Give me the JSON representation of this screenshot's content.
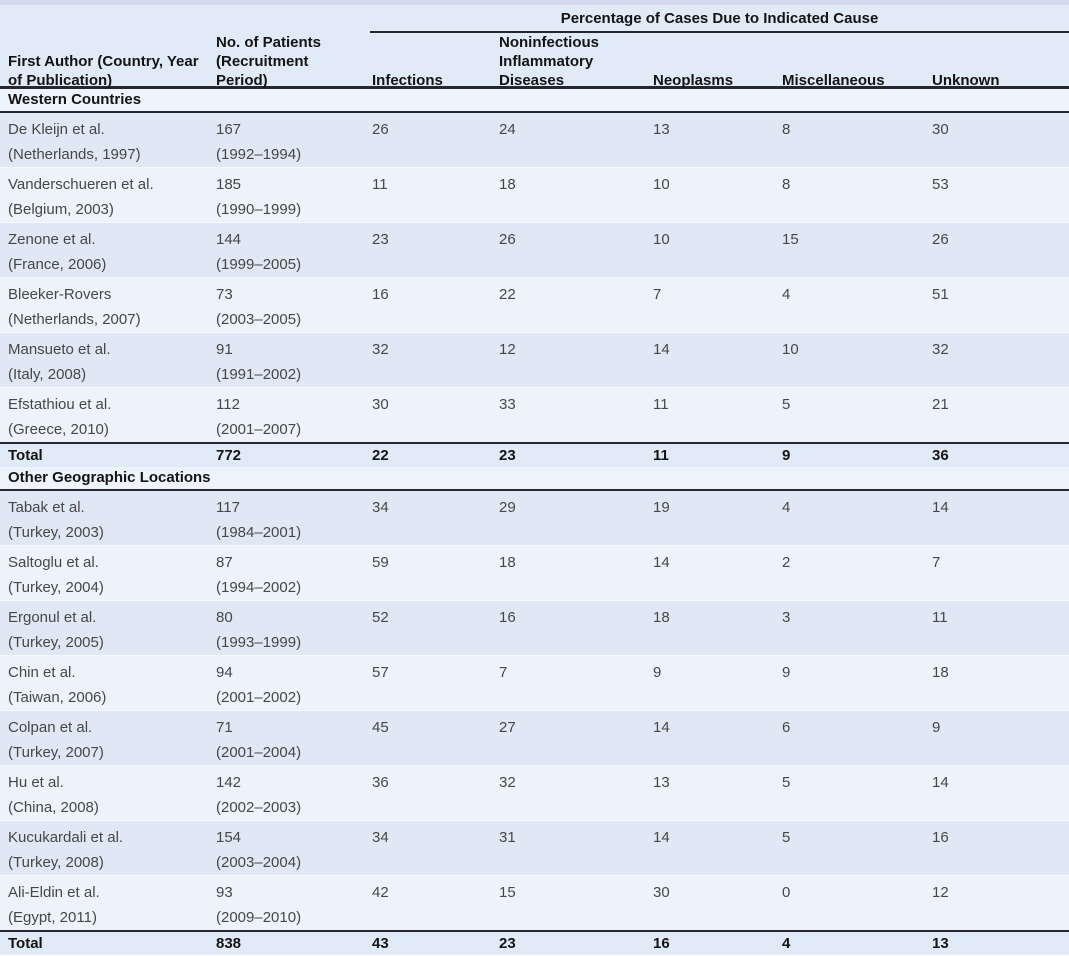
{
  "table": {
    "span_header": "Percentage of Cases Due to Indicated Cause",
    "header": {
      "col_author": "First Author (Country, Year of Publication)",
      "col_patients": "No. of Patients (Recruitment Period)",
      "col_infections": "Infections",
      "col_niid": "Noninfectious Inflammatory Diseases",
      "col_neoplasms": "Neoplasms",
      "col_misc": "Miscellaneous",
      "col_unknown": "Unknown"
    },
    "sections": [
      {
        "title": "Western Countries",
        "rows": [
          {
            "name": "De Kleijn et al.",
            "place": "(Netherlands, 1997)",
            "n": "167",
            "period": "(1992–1994)",
            "inf": "26",
            "niid": "24",
            "neo": "13",
            "misc": "8",
            "unk": "30"
          },
          {
            "name": "Vanderschueren et al.",
            "place": "(Belgium, 2003)",
            "n": "185",
            "period": "(1990–1999)",
            "inf": "11",
            "niid": "18",
            "neo": "10",
            "misc": "8",
            "unk": "53"
          },
          {
            "name": "Zenone et al.",
            "place": "(France, 2006)",
            "n": "144",
            "period": "(1999–2005)",
            "inf": "23",
            "niid": "26",
            "neo": "10",
            "misc": "15",
            "unk": "26"
          },
          {
            "name": "Bleeker-Rovers",
            "place": "(Netherlands, 2007)",
            "n": "73",
            "period": "(2003–2005)",
            "inf": "16",
            "niid": "22",
            "neo": "7",
            "misc": "4",
            "unk": "51"
          },
          {
            "name": "Mansueto et al.",
            "place": "(Italy, 2008)",
            "n": "91",
            "period": "(1991–2002)",
            "inf": "32",
            "niid": "12",
            "neo": "14",
            "misc": "10",
            "unk": "32"
          },
          {
            "name": "Efstathiou et al.",
            "place": "(Greece, 2010)",
            "n": "112",
            "period": "(2001–2007)",
            "inf": "30",
            "niid": "33",
            "neo": "11",
            "misc": "5",
            "unk": "21"
          }
        ],
        "total": {
          "label": "Total",
          "n": "772",
          "inf": "22",
          "niid": "23",
          "neo": "11",
          "misc": "9",
          "unk": "36"
        }
      },
      {
        "title": "Other Geographic Locations",
        "rows": [
          {
            "name": "Tabak et al.",
            "place": "(Turkey, 2003)",
            "n": "117",
            "period": "(1984–2001)",
            "inf": "34",
            "niid": "29",
            "neo": "19",
            "misc": "4",
            "unk": "14"
          },
          {
            "name": "Saltoglu et al.",
            "place": "(Turkey, 2004)",
            "n": "87",
            "period": "(1994–2002)",
            "inf": "59",
            "niid": "18",
            "neo": "14",
            "misc": "2",
            "unk": "7"
          },
          {
            "name": "Ergonul et al.",
            "place": "(Turkey, 2005)",
            "n": "80",
            "period": "(1993–1999)",
            "inf": "52",
            "niid": "16",
            "neo": "18",
            "misc": "3",
            "unk": "11"
          },
          {
            "name": "Chin et al.",
            "place": "(Taiwan, 2006)",
            "n": "94",
            "period": "(2001–2002)",
            "inf": "57",
            "niid": "7",
            "neo": "9",
            "misc": "9",
            "unk": "18"
          },
          {
            "name": "Colpan et al.",
            "place": "(Turkey, 2007)",
            "n": "71",
            "period": "(2001–2004)",
            "inf": "45",
            "niid": "27",
            "neo": "14",
            "misc": "6",
            "unk": "9"
          },
          {
            "name": "Hu et al.",
            "place": "(China, 2008)",
            "n": "142",
            "period": "(2002–2003)",
            "inf": "36",
            "niid": "32",
            "neo": "13",
            "misc": "5",
            "unk": "14"
          },
          {
            "name": "Kucukardali et al.",
            "place": "(Turkey, 2008)",
            "n": "154",
            "period": "(2003–2004)",
            "inf": "34",
            "niid": "31",
            "neo": "14",
            "misc": "5",
            "unk": "16"
          },
          {
            "name": "Ali-Eldin et al.",
            "place": "(Egypt, 2011)",
            "n": "93",
            "period": "(2009–2010)",
            "inf": "42",
            "niid": "15",
            "neo": "30",
            "misc": "0",
            "unk": "12"
          }
        ],
        "total": {
          "label": "Total",
          "n": "838",
          "inf": "43",
          "niid": "23",
          "neo": "16",
          "misc": "4",
          "unk": "13"
        }
      }
    ],
    "colors": {
      "rule": "#26262e",
      "header_bg": "#e1eaf7",
      "stripe_dark": "#dfe8f4",
      "stripe_light": "#ecf3fb",
      "section_bg": "#eef4fb",
      "top_bar": "#d4daee"
    }
  }
}
